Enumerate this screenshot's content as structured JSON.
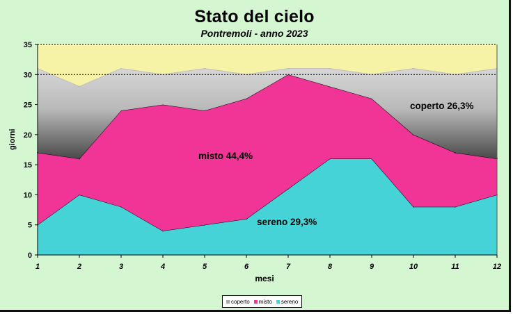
{
  "chart_data": {
    "type": "area",
    "stacked": true,
    "title": "Stato del cielo",
    "subtitle": "Pontremoli - anno 2023",
    "xlabel": "mesi",
    "ylabel": "giorni",
    "x": [
      1,
      2,
      3,
      4,
      5,
      6,
      7,
      8,
      9,
      10,
      11,
      12
    ],
    "ylim": [
      0,
      35
    ],
    "yticks": [
      0,
      5,
      10,
      15,
      20,
      25,
      30,
      35
    ],
    "grid": false,
    "legend_position": "bottom",
    "series": [
      {
        "name": "sereno",
        "values": [
          5,
          10,
          8,
          4,
          5,
          6,
          11,
          16,
          16,
          8,
          8,
          10
        ],
        "color": "#46d3d8"
      },
      {
        "name": "misto",
        "values": [
          12,
          6,
          16,
          21,
          19,
          20,
          19,
          12,
          10,
          12,
          9,
          6
        ],
        "color": "#f03596"
      },
      {
        "name": "coperto",
        "values": [
          14,
          12,
          7,
          5,
          7,
          4,
          1,
          3,
          4,
          11,
          13,
          15
        ],
        "color": "#a8a8a8"
      }
    ],
    "annotations": [
      {
        "text": "misto 44,4%"
      },
      {
        "text": "sereno  29,3%"
      },
      {
        "text": "coperto 26,3%"
      }
    ],
    "legend_order": [
      "coperto",
      "misto",
      "sereno"
    ]
  }
}
